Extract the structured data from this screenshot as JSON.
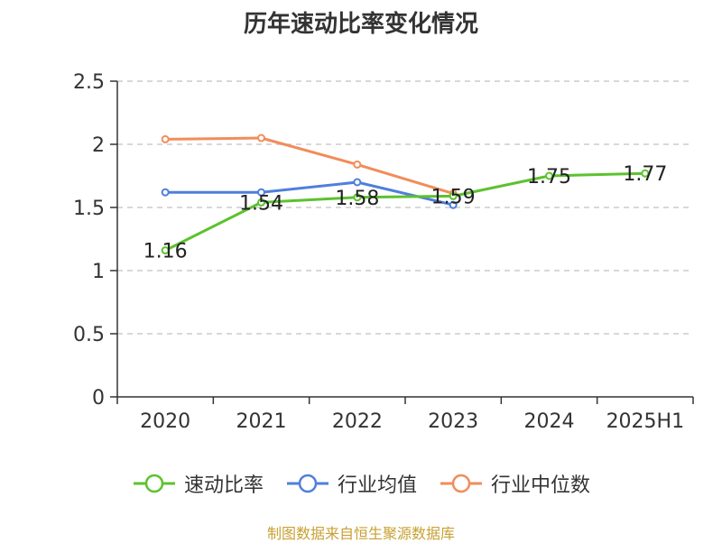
{
  "chart_data": {
    "type": "line",
    "title": "历年速动比率变化情况",
    "categories": [
      "2020",
      "2021",
      "2022",
      "2023",
      "2024",
      "2025H1"
    ],
    "ylim": [
      0,
      2.5
    ],
    "yticks": [
      "0",
      "0.5",
      "1",
      "1.5",
      "2",
      "2.5"
    ],
    "grid": true,
    "legend_position": "bottom",
    "series": [
      {
        "name": "速动比率",
        "color": "#5cc22e",
        "values": [
          1.16,
          1.54,
          1.58,
          1.59,
          1.75,
          1.77
        ],
        "labels": [
          "1.16",
          "1.54",
          "1.58",
          "1.59",
          "1.75",
          "1.77"
        ]
      },
      {
        "name": "行业均值",
        "color": "#4f7fdb",
        "values": [
          1.62,
          1.62,
          1.7,
          1.52,
          null,
          null
        ]
      },
      {
        "name": "行业中位数",
        "color": "#f28c5b",
        "values": [
          2.04,
          2.05,
          1.84,
          1.61,
          null,
          null
        ]
      }
    ]
  },
  "source": {
    "text": "制图数据来自恒生聚源数据库",
    "color": "#c8a033"
  }
}
